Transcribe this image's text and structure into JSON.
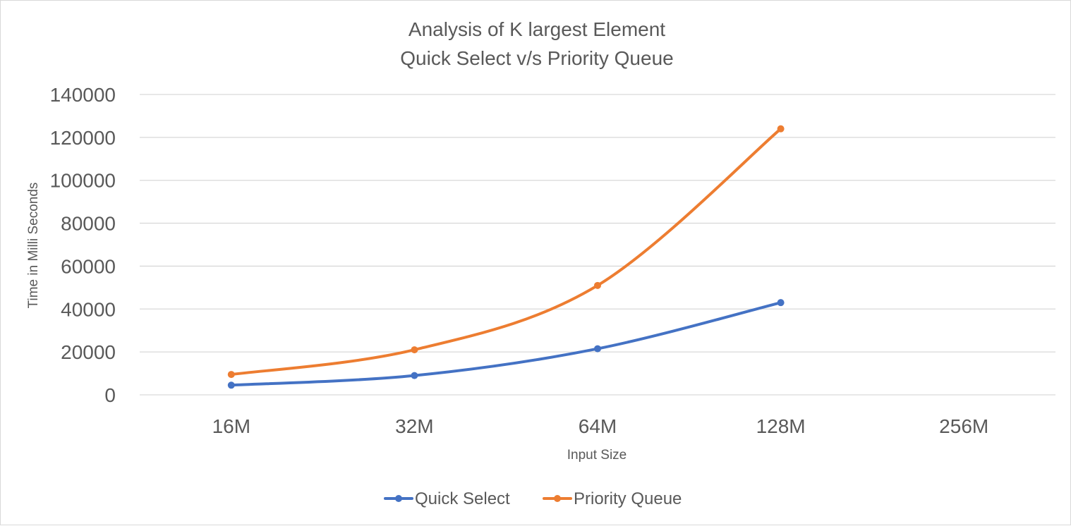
{
  "chart_data": {
    "type": "line",
    "title": [
      "Analysis of K largest Element",
      "Quick Select v/s Priority Queue"
    ],
    "xlabel": "Input Size",
    "ylabel": "Time in Milli Seconds",
    "categories": [
      "16M",
      "32M",
      "64M",
      "128M",
      "256M"
    ],
    "ylim": [
      0,
      140000
    ],
    "yticks": [
      0,
      20000,
      40000,
      60000,
      80000,
      100000,
      120000,
      140000
    ],
    "grid": true,
    "legend_position": "bottom",
    "series": [
      {
        "name": "Quick Select",
        "color": "#4472C4",
        "values": [
          4500,
          9000,
          21500,
          43000,
          null
        ]
      },
      {
        "name": "Priority Queue",
        "color": "#ED7D31",
        "values": [
          9500,
          21000,
          51000,
          124000,
          null
        ]
      }
    ]
  }
}
